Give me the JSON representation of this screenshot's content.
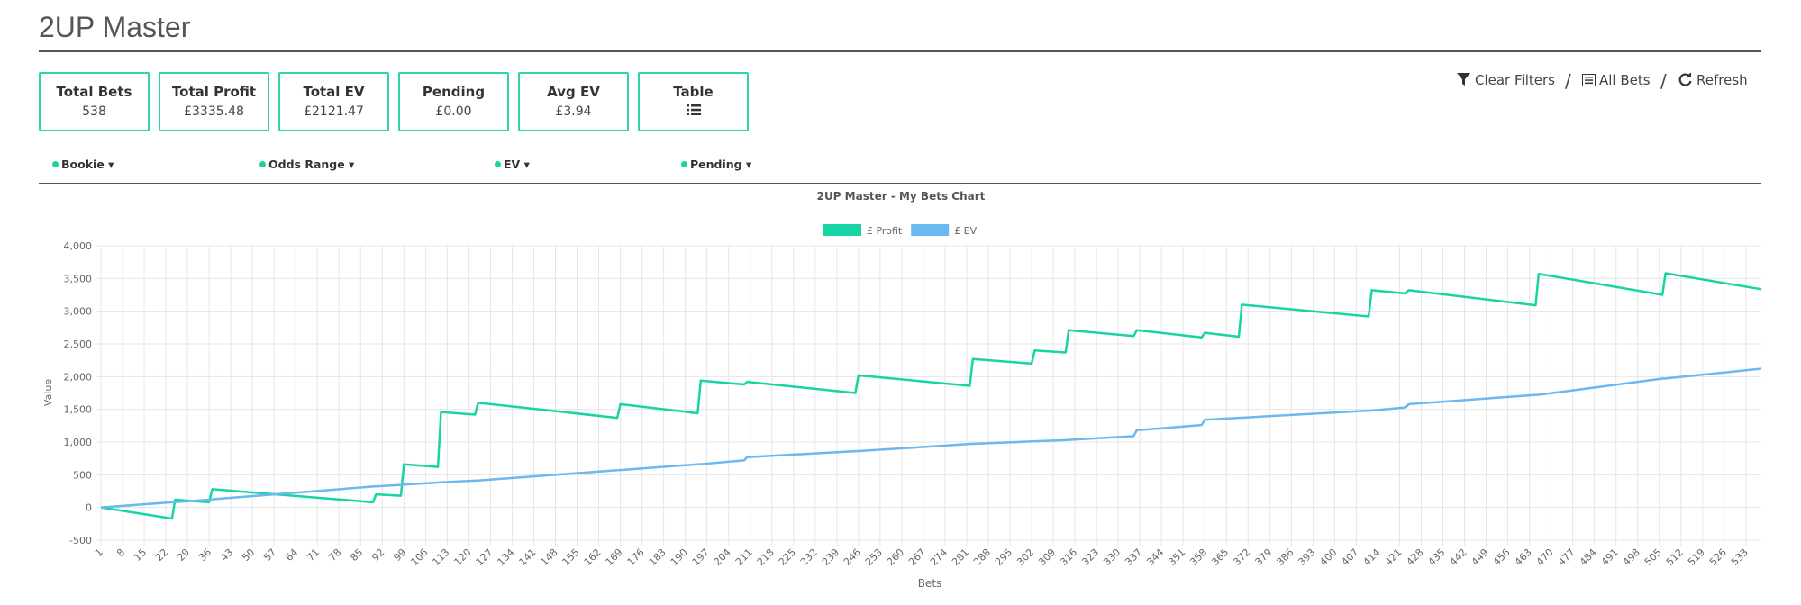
{
  "header": {
    "title": "2UP Master"
  },
  "cards": [
    {
      "label": "Total Bets",
      "value": "538"
    },
    {
      "label": "Total Profit",
      "value": "£3335.48"
    },
    {
      "label": "Total EV",
      "value": "£2121.47"
    },
    {
      "label": "Pending",
      "value": "£0.00"
    },
    {
      "label": "Avg EV",
      "value": "£3.94"
    },
    {
      "label": "Table"
    }
  ],
  "toolbar": [
    "Clear Filters",
    "All Bets",
    "Refresh"
  ],
  "filters": [
    "Bookie",
    "Odds Range",
    "EV",
    "Pending"
  ],
  "chart_data": {
    "type": "line",
    "title": "2UP Master - My Bets Chart",
    "x_label": "Bets",
    "y_label": "Value",
    "x": [
      1,
      24,
      25,
      36,
      37,
      89,
      90,
      98,
      99,
      110,
      111,
      122,
      123,
      168,
      169,
      194,
      195,
      209,
      210,
      245,
      246,
      282,
      283,
      302,
      303,
      313,
      314,
      335,
      336,
      357,
      358,
      369,
      370,
      411,
      412,
      423,
      424,
      465,
      466,
      506,
      507,
      538
    ],
    "series": [
      {
        "name": "£ Profit",
        "color": "#17d4a4",
        "values": [
          0,
          -170,
          120,
          80,
          280,
          80,
          200,
          180,
          660,
          620,
          1460,
          1420,
          1600,
          1370,
          1580,
          1440,
          1940,
          1880,
          1920,
          1750,
          2020,
          1860,
          2270,
          2200,
          2400,
          2370,
          2710,
          2620,
          2710,
          2600,
          2670,
          2610,
          3100,
          2920,
          3320,
          3270,
          3320,
          3090,
          3570,
          3250,
          3580,
          3335
        ]
      },
      {
        "name": "£ EV",
        "color": "#6cb8f0",
        "values": [
          0,
          80,
          82,
          120,
          125,
          320,
          322,
          345,
          350,
          380,
          385,
          410,
          412,
          570,
          572,
          660,
          662,
          720,
          770,
          860,
          862,
          970,
          972,
          1010,
          1012,
          1030,
          1032,
          1090,
          1180,
          1260,
          1340,
          1370,
          1372,
          1480,
          1482,
          1530,
          1580,
          1720,
          1722,
          1970,
          1972,
          2121
        ]
      }
    ],
    "xlim": [
      1,
      538
    ],
    "xticks": [
      1,
      8,
      15,
      22,
      29,
      36,
      43,
      50,
      57,
      64,
      71,
      78,
      85,
      92,
      99,
      106,
      113,
      120,
      127,
      134,
      141,
      148,
      155,
      162,
      169,
      176,
      183,
      190,
      197,
      204,
      211,
      218,
      225,
      232,
      239,
      246,
      253,
      260,
      267,
      274,
      281,
      288,
      295,
      302,
      309,
      316,
      323,
      330,
      337,
      344,
      351,
      358,
      365,
      372,
      379,
      386,
      393,
      400,
      407,
      414,
      421,
      428,
      435,
      442,
      449,
      456,
      463,
      470,
      477,
      484,
      491,
      498,
      505,
      512,
      519,
      526,
      533
    ],
    "ylim": [
      -500,
      4000
    ],
    "yticks": [
      -500,
      0,
      500,
      {
        "value": 1000,
        "label": "1,000"
      },
      {
        "value": 1500,
        "label": "1,500"
      },
      {
        "value": 2000,
        "label": "2,000"
      },
      {
        "value": 2500,
        "label": "2,500"
      },
      {
        "value": 3000,
        "label": "3,000"
      },
      {
        "value": 3500,
        "label": "3,500"
      },
      {
        "value": 4000,
        "label": "4,000"
      }
    ],
    "grid": true,
    "legend": "top"
  }
}
